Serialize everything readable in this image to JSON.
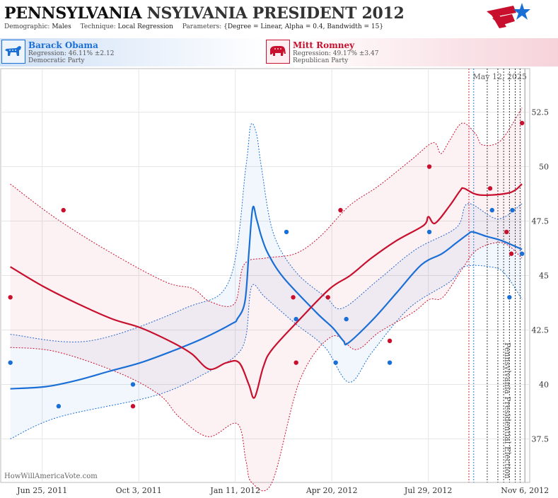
{
  "header": {
    "title_part1": "PENNSYLVANIA",
    "title_part2": "NSYLVANIA PRESIDENT 2012",
    "demographic_label": "Demographic:",
    "demographic_value": "Males",
    "technique_label": "Technique:",
    "technique_value": "Local Regression",
    "parameters_label": "Parameters:",
    "parameters_value": "{Degree = Linear, Alpha = 0.4, Bandwidth = 15}"
  },
  "candidates": [
    {
      "name": "Barack Obama",
      "regression": "Regression: 46.11% ±2.12",
      "party": "Democratic Party",
      "color": "#1a6fd6",
      "icon": "donkey-icon"
    },
    {
      "name": "Mitt Romney",
      "regression": "Regression: 49.17% ±3.47",
      "party": "Republican Party",
      "color": "#c8102e",
      "icon": "elephant-icon"
    }
  ],
  "watermark": "HowWillAmericaVote.com",
  "chart_data": {
    "type": "line",
    "date_label": "May 12, 2025",
    "event_label": "Pennsylvania Presidential Election",
    "event_date": "2012-11-06",
    "x_tick_labels": [
      "Jun 25, 2011",
      "Oct 3, 2011",
      "Jan 11, 2012",
      "Apr 20, 2012",
      "Jul 29, 2012",
      "Nov 6, 2012"
    ],
    "x_tick_dates": [
      "2011-06-25",
      "2011-10-03",
      "2012-01-11",
      "2012-04-20",
      "2012-07-29",
      "2012-11-06"
    ],
    "y_ticks": [
      37.5,
      40,
      42.5,
      45,
      47.5,
      50,
      52.5
    ],
    "y_range": [
      35.5,
      54.5
    ],
    "x_range": [
      "2011-05-13",
      "2012-11-11"
    ],
    "grid": true,
    "vertical_markers": {
      "red": [
        "2012-09-09"
      ],
      "blue": [
        "2012-09-14"
      ],
      "black": [
        "2012-09-28",
        "2012-10-09",
        "2012-10-15",
        "2012-10-21",
        "2012-10-27",
        "2012-11-01"
      ]
    },
    "series": [
      {
        "name": "Barack Obama",
        "color": "#1a6fd6",
        "trend": [
          [
            "2011-05-23",
            39.8
          ],
          [
            "2011-06-29",
            39.9
          ],
          [
            "2011-08-01",
            40.2
          ],
          [
            "2011-09-02",
            40.6
          ],
          [
            "2011-10-05",
            41.0
          ],
          [
            "2011-11-05",
            41.5
          ],
          [
            "2011-12-08",
            42.1
          ],
          [
            "2012-01-08",
            42.8
          ],
          [
            "2012-01-13",
            43.0
          ],
          [
            "2012-01-21",
            43.8
          ],
          [
            "2012-01-25",
            46.0
          ],
          [
            "2012-01-29",
            48.1
          ],
          [
            "2012-02-02",
            47.6
          ],
          [
            "2012-02-07",
            46.8
          ],
          [
            "2012-02-14",
            46.0
          ],
          [
            "2012-03-01",
            44.9
          ],
          [
            "2012-04-04",
            43.3
          ],
          [
            "2012-04-21",
            42.6
          ],
          [
            "2012-05-02",
            42.0
          ],
          [
            "2012-05-07",
            41.9
          ],
          [
            "2012-06-02",
            43.0
          ],
          [
            "2012-06-26",
            44.2
          ],
          [
            "2012-07-22",
            45.5
          ],
          [
            "2012-08-12",
            46.0
          ],
          [
            "2012-08-27",
            46.5
          ],
          [
            "2012-09-08",
            46.9
          ],
          [
            "2012-09-13",
            47.0
          ],
          [
            "2012-09-27",
            46.8
          ],
          [
            "2012-10-13",
            46.6
          ],
          [
            "2012-11-03",
            46.2
          ]
        ],
        "ci_upper": [
          [
            "2011-05-23",
            42.3
          ],
          [
            "2011-08-13",
            42.0
          ],
          [
            "2011-11-20",
            43.5
          ],
          [
            "2012-01-05",
            44.8
          ],
          [
            "2012-01-22",
            50.0
          ],
          [
            "2012-01-27",
            51.9
          ],
          [
            "2012-02-02",
            51.5
          ],
          [
            "2012-02-07",
            50.0
          ],
          [
            "2012-02-19",
            47.0
          ],
          [
            "2012-03-13",
            45.2
          ],
          [
            "2012-04-14",
            44.0
          ],
          [
            "2012-05-01",
            43.5
          ],
          [
            "2012-06-07",
            44.8
          ],
          [
            "2012-07-16",
            46.2
          ],
          [
            "2012-08-27",
            47.2
          ],
          [
            "2012-09-08",
            48.3
          ],
          [
            "2012-10-09",
            47.6
          ],
          [
            "2012-11-03",
            48.3
          ]
        ],
        "ci_lower": [
          [
            "2011-05-23",
            37.5
          ],
          [
            "2011-07-12",
            38.5
          ],
          [
            "2011-10-21",
            39.5
          ],
          [
            "2011-12-15",
            40.6
          ],
          [
            "2012-01-11",
            41.3
          ],
          [
            "2012-01-22",
            42.2
          ],
          [
            "2012-01-28",
            44.5
          ],
          [
            "2012-02-11",
            44.0
          ],
          [
            "2012-03-13",
            42.8
          ],
          [
            "2012-04-13",
            41.7
          ],
          [
            "2012-05-08",
            40.1
          ],
          [
            "2012-06-01",
            41.5
          ],
          [
            "2012-07-09",
            43.5
          ],
          [
            "2012-08-20",
            44.7
          ],
          [
            "2012-09-04",
            45.4
          ],
          [
            "2012-10-01",
            45.4
          ],
          [
            "2012-10-16",
            45.1
          ],
          [
            "2012-11-03",
            43.9
          ]
        ],
        "points": [
          [
            "2011-05-23",
            41
          ],
          [
            "2011-07-12",
            39
          ],
          [
            "2011-09-27",
            40
          ],
          [
            "2012-03-04",
            47
          ],
          [
            "2012-03-14",
            43
          ],
          [
            "2012-04-24",
            41
          ],
          [
            "2012-05-05",
            43
          ],
          [
            "2012-06-19",
            41
          ],
          [
            "2012-07-30",
            47
          ],
          [
            "2012-10-03",
            48
          ],
          [
            "2012-10-21",
            44
          ],
          [
            "2012-10-24",
            48
          ],
          [
            "2012-11-03",
            46
          ]
        ]
      },
      {
        "name": "Mitt Romney",
        "color": "#c8102e",
        "trend": [
          [
            "2011-05-23",
            45.4
          ],
          [
            "2011-06-26",
            44.5
          ],
          [
            "2011-08-01",
            43.7
          ],
          [
            "2011-09-06",
            43.0
          ],
          [
            "2011-10-05",
            42.6
          ],
          [
            "2011-11-08",
            41.9
          ],
          [
            "2011-11-27",
            41.4
          ],
          [
            "2011-12-15",
            40.7
          ],
          [
            "2012-01-02",
            41.0
          ],
          [
            "2012-01-15",
            41.0
          ],
          [
            "2012-01-25",
            40.0
          ],
          [
            "2012-01-31",
            39.4
          ],
          [
            "2012-02-09",
            40.8
          ],
          [
            "2012-02-18",
            41.6
          ],
          [
            "2012-03-18",
            43.0
          ],
          [
            "2012-04-18",
            44.4
          ],
          [
            "2012-05-09",
            45.0
          ],
          [
            "2012-05-31",
            45.8
          ],
          [
            "2012-06-26",
            46.6
          ],
          [
            "2012-07-24",
            47.3
          ],
          [
            "2012-07-29",
            47.7
          ],
          [
            "2012-08-05",
            47.4
          ],
          [
            "2012-08-20",
            48.2
          ],
          [
            "2012-08-31",
            48.9
          ],
          [
            "2012-09-04",
            49.0
          ],
          [
            "2012-09-20",
            48.7
          ],
          [
            "2012-10-21",
            48.8
          ],
          [
            "2012-11-03",
            49.2
          ]
        ],
        "ci_upper": [
          [
            "2011-05-23",
            49.2
          ],
          [
            "2011-07-10",
            47.6
          ],
          [
            "2011-09-06",
            46.0
          ],
          [
            "2011-10-31",
            44.7
          ],
          [
            "2011-11-28",
            44.4
          ],
          [
            "2011-12-16",
            43.8
          ],
          [
            "2012-01-10",
            43.7
          ],
          [
            "2012-01-20",
            45.5
          ],
          [
            "2012-02-11",
            45.8
          ],
          [
            "2012-03-13",
            46.0
          ],
          [
            "2012-04-08",
            46.8
          ],
          [
            "2012-05-08",
            48.2
          ],
          [
            "2012-06-07",
            49.1
          ],
          [
            "2012-07-11",
            50.3
          ],
          [
            "2012-08-03",
            51.1
          ],
          [
            "2012-08-11",
            50.6
          ],
          [
            "2012-08-20",
            51.2
          ],
          [
            "2012-09-02",
            52.0
          ],
          [
            "2012-09-16",
            51.5
          ],
          [
            "2012-09-23",
            51.0
          ],
          [
            "2012-10-12",
            51.2
          ],
          [
            "2012-11-03",
            52.7
          ]
        ],
        "ci_lower": [
          [
            "2011-05-23",
            41.7
          ],
          [
            "2011-07-10",
            41.5
          ],
          [
            "2011-09-14",
            40.5
          ],
          [
            "2011-10-25",
            39.5
          ],
          [
            "2011-11-14",
            38.5
          ],
          [
            "2011-12-14",
            37.6
          ],
          [
            "2012-01-13",
            38.2
          ],
          [
            "2012-01-22",
            36.5
          ],
          [
            "2012-01-28",
            35.5
          ],
          [
            "2012-02-18",
            35.5
          ],
          [
            "2012-03-18",
            40.2
          ],
          [
            "2012-04-20",
            42.2
          ],
          [
            "2012-05-15",
            41.6
          ],
          [
            "2012-06-08",
            42.4
          ],
          [
            "2012-07-13",
            43.3
          ],
          [
            "2012-07-30",
            43.9
          ],
          [
            "2012-08-13",
            44.0
          ],
          [
            "2012-09-02",
            45.3
          ],
          [
            "2012-09-18",
            46.2
          ],
          [
            "2012-10-14",
            46.5
          ],
          [
            "2012-11-03",
            45.8
          ]
        ],
        "points": [
          [
            "2011-05-23",
            44
          ],
          [
            "2011-07-17",
            48
          ],
          [
            "2011-09-27",
            39
          ],
          [
            "2012-03-11",
            44
          ],
          [
            "2012-03-14",
            41
          ],
          [
            "2012-04-16",
            44
          ],
          [
            "2012-04-29",
            48
          ],
          [
            "2012-06-19",
            42
          ],
          [
            "2012-07-30",
            50
          ],
          [
            "2012-10-01",
            49
          ],
          [
            "2012-10-18",
            47
          ],
          [
            "2012-10-23",
            46
          ],
          [
            "2012-11-03",
            52
          ]
        ]
      }
    ]
  }
}
